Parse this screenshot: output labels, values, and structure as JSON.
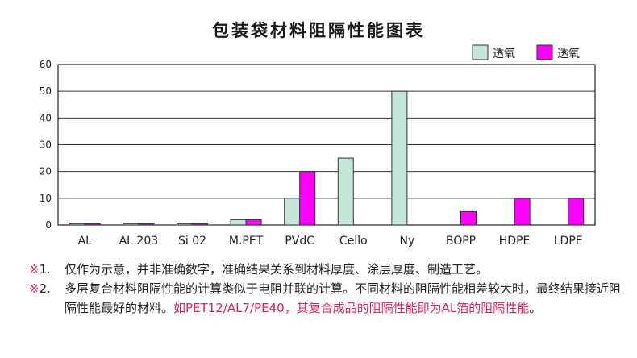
{
  "chart_data": {
    "type": "bar",
    "title": "包装袋材料阻隔性能图表",
    "categories": [
      "AL",
      "AL 203",
      "Si 02",
      "M.PET",
      "PVdC",
      "Cello",
      "Ny",
      "BOPP",
      "HDPE",
      "LDPE"
    ],
    "series": [
      {
        "name": "透氧",
        "color": "#c3e6d6",
        "values": [
          0.5,
          0.5,
          0.5,
          2,
          10,
          25,
          50,
          null,
          null,
          null
        ]
      },
      {
        "name": "透氧",
        "color": "#ff00ff",
        "values": [
          0.5,
          0.5,
          0.5,
          2,
          20,
          null,
          null,
          5,
          10,
          10
        ]
      }
    ],
    "ylim": [
      0,
      60
    ],
    "yticks": [
      0,
      10,
      20,
      30,
      40,
      50,
      60
    ],
    "grid": true,
    "legend_position": "top-right"
  },
  "notes": [
    {
      "mark": "※",
      "num": "1.",
      "text": "仅作为示意，并非准确数字，准确结果关系到材料厚度、涂层厚度、制造工艺。"
    },
    {
      "mark": "※",
      "num": "2.",
      "text": "多层复合材料阻隔性能的计算类似于电阻并联的计算。不同材料的阻隔性能相差较大时，最终结果接近阻隔性能最好的材料。",
      "highlight": "如PET12/AL7/PE40，其复合成品的阻隔性能即为AL箔的阻隔性能",
      "end": "。"
    }
  ]
}
